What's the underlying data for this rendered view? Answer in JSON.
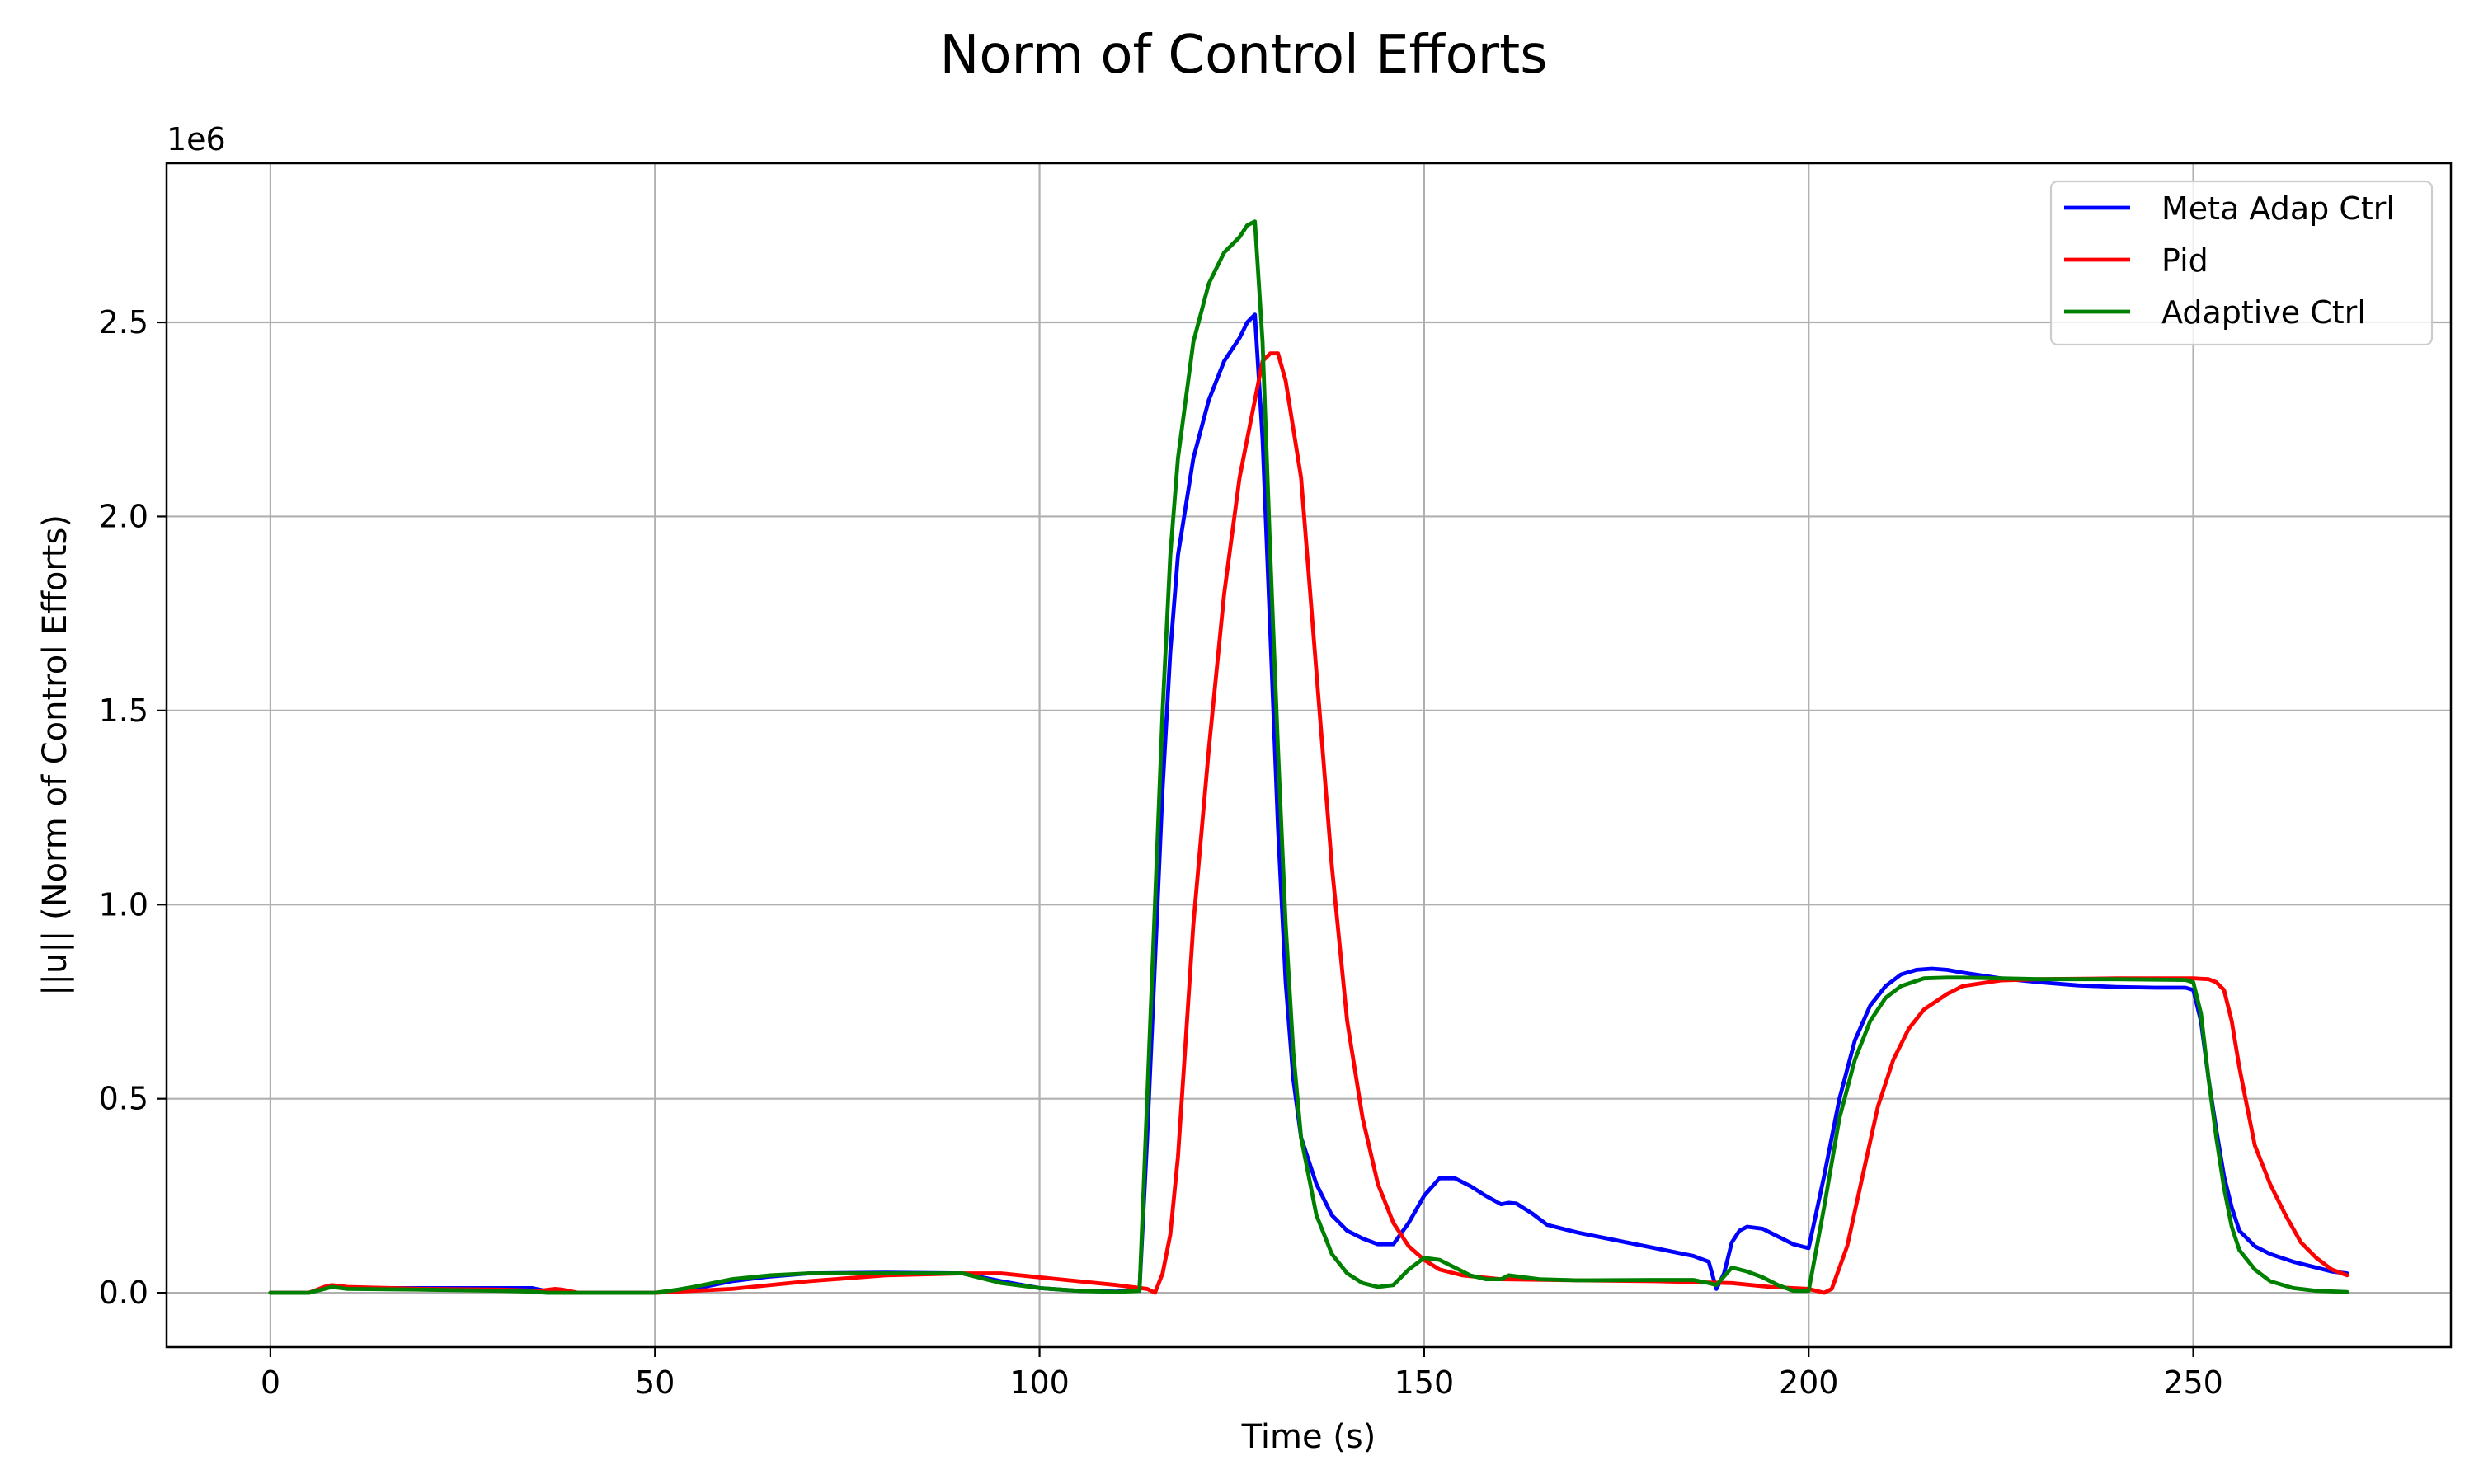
{
  "chart_data": {
    "type": "line",
    "title": "Norm of Control Efforts",
    "xlabel": "Time (s)",
    "ylabel": "||u|| (Norm of Control Efforts)",
    "y_offset_label": "1e6",
    "y_scale": 1000000,
    "xlim": [
      -13.5,
      283.5
    ],
    "ylim": [
      -0.14,
      2.91
    ],
    "x_ticks": [
      0,
      50,
      100,
      150,
      200,
      250
    ],
    "x_tick_labels": [
      "0",
      "50",
      "100",
      "150",
      "200",
      "250"
    ],
    "y_ticks": [
      0,
      0.5,
      1.0,
      1.5,
      2.0,
      2.5
    ],
    "y_tick_labels": [
      "0.0",
      "0.5",
      "1.0",
      "1.5",
      "2.0",
      "2.5"
    ],
    "grid": true,
    "legend_position": "top-right",
    "series": [
      {
        "name": "Meta Adap Ctrl",
        "color": "#0000ff",
        "points": [
          [
            0,
            0
          ],
          [
            5,
            0
          ],
          [
            7,
            0.012
          ],
          [
            8,
            0.015
          ],
          [
            10,
            0.012
          ],
          [
            20,
            0.012
          ],
          [
            30,
            0.012
          ],
          [
            34,
            0.012
          ],
          [
            36,
            0.004
          ],
          [
            40,
            0
          ],
          [
            50,
            0
          ],
          [
            55,
            0.01
          ],
          [
            60,
            0.03
          ],
          [
            65,
            0.042
          ],
          [
            70,
            0.05
          ],
          [
            80,
            0.052
          ],
          [
            90,
            0.05
          ],
          [
            95,
            0.03
          ],
          [
            100,
            0.012
          ],
          [
            105,
            0.005
          ],
          [
            110,
            0.003
          ],
          [
            113,
            0.01
          ],
          [
            114,
            0.4
          ],
          [
            115,
            0.85
          ],
          [
            116,
            1.3
          ],
          [
            117,
            1.65
          ],
          [
            118,
            1.9
          ],
          [
            120,
            2.15
          ],
          [
            122,
            2.3
          ],
          [
            124,
            2.4
          ],
          [
            126,
            2.46
          ],
          [
            127,
            2.5
          ],
          [
            128,
            2.52
          ],
          [
            129,
            2.2
          ],
          [
            130,
            1.7
          ],
          [
            131,
            1.2
          ],
          [
            132,
            0.8
          ],
          [
            133,
            0.55
          ],
          [
            134,
            0.4
          ],
          [
            136,
            0.28
          ],
          [
            138,
            0.2
          ],
          [
            140,
            0.16
          ],
          [
            142,
            0.14
          ],
          [
            144,
            0.125
          ],
          [
            146,
            0.125
          ],
          [
            148,
            0.18
          ],
          [
            150,
            0.25
          ],
          [
            152,
            0.295
          ],
          [
            154,
            0.295
          ],
          [
            156,
            0.275
          ],
          [
            158,
            0.25
          ],
          [
            160,
            0.228
          ],
          [
            161,
            0.232
          ],
          [
            162,
            0.23
          ],
          [
            164,
            0.205
          ],
          [
            166,
            0.175
          ],
          [
            170,
            0.155
          ],
          [
            175,
            0.135
          ],
          [
            180,
            0.115
          ],
          [
            185,
            0.095
          ],
          [
            187,
            0.08
          ],
          [
            188,
            0.01
          ],
          [
            189,
            0.05
          ],
          [
            190,
            0.13
          ],
          [
            191,
            0.16
          ],
          [
            192,
            0.17
          ],
          [
            194,
            0.165
          ],
          [
            196,
            0.145
          ],
          [
            198,
            0.125
          ],
          [
            200,
            0.115
          ],
          [
            202,
            0.3
          ],
          [
            204,
            0.5
          ],
          [
            206,
            0.65
          ],
          [
            208,
            0.74
          ],
          [
            210,
            0.79
          ],
          [
            212,
            0.82
          ],
          [
            214,
            0.832
          ],
          [
            216,
            0.835
          ],
          [
            218,
            0.832
          ],
          [
            220,
            0.825
          ],
          [
            225,
            0.81
          ],
          [
            230,
            0.8
          ],
          [
            235,
            0.792
          ],
          [
            240,
            0.788
          ],
          [
            245,
            0.786
          ],
          [
            249,
            0.786
          ],
          [
            250,
            0.78
          ],
          [
            251,
            0.7
          ],
          [
            252,
            0.55
          ],
          [
            253,
            0.42
          ],
          [
            254,
            0.3
          ],
          [
            255,
            0.22
          ],
          [
            256,
            0.16
          ],
          [
            258,
            0.12
          ],
          [
            260,
            0.1
          ],
          [
            263,
            0.08
          ],
          [
            266,
            0.065
          ],
          [
            268,
            0.055
          ],
          [
            270,
            0.05
          ]
        ]
      },
      {
        "name": "Pid",
        "color": "#ff0000",
        "points": [
          [
            0,
            0
          ],
          [
            5,
            0
          ],
          [
            7,
            0.015
          ],
          [
            8,
            0.02
          ],
          [
            10,
            0.015
          ],
          [
            20,
            0.01
          ],
          [
            30,
            0.008
          ],
          [
            35,
            0.005
          ],
          [
            37,
            0.01
          ],
          [
            38,
            0.008
          ],
          [
            40,
            0
          ],
          [
            50,
            0
          ],
          [
            60,
            0.01
          ],
          [
            70,
            0.03
          ],
          [
            80,
            0.045
          ],
          [
            90,
            0.05
          ],
          [
            95,
            0.05
          ],
          [
            100,
            0.04
          ],
          [
            105,
            0.03
          ],
          [
            110,
            0.02
          ],
          [
            114,
            0.01
          ],
          [
            115,
            0
          ],
          [
            116,
            0.05
          ],
          [
            117,
            0.15
          ],
          [
            118,
            0.35
          ],
          [
            119,
            0.65
          ],
          [
            120,
            0.95
          ],
          [
            122,
            1.4
          ],
          [
            124,
            1.8
          ],
          [
            126,
            2.1
          ],
          [
            128,
            2.3
          ],
          [
            129,
            2.4
          ],
          [
            130,
            2.42
          ],
          [
            131,
            2.42
          ],
          [
            132,
            2.35
          ],
          [
            134,
            2.1
          ],
          [
            136,
            1.6
          ],
          [
            138,
            1.1
          ],
          [
            140,
            0.7
          ],
          [
            142,
            0.45
          ],
          [
            144,
            0.28
          ],
          [
            146,
            0.18
          ],
          [
            148,
            0.12
          ],
          [
            150,
            0.085
          ],
          [
            152,
            0.06
          ],
          [
            155,
            0.045
          ],
          [
            160,
            0.035
          ],
          [
            170,
            0.032
          ],
          [
            180,
            0.03
          ],
          [
            190,
            0.025
          ],
          [
            195,
            0.015
          ],
          [
            200,
            0.01
          ],
          [
            202,
            0
          ],
          [
            203,
            0.01
          ],
          [
            205,
            0.12
          ],
          [
            207,
            0.3
          ],
          [
            209,
            0.48
          ],
          [
            211,
            0.6
          ],
          [
            213,
            0.68
          ],
          [
            215,
            0.73
          ],
          [
            218,
            0.77
          ],
          [
            220,
            0.79
          ],
          [
            225,
            0.805
          ],
          [
            230,
            0.808
          ],
          [
            240,
            0.81
          ],
          [
            250,
            0.81
          ],
          [
            252,
            0.808
          ],
          [
            253,
            0.8
          ],
          [
            254,
            0.78
          ],
          [
            255,
            0.7
          ],
          [
            256,
            0.58
          ],
          [
            257,
            0.48
          ],
          [
            258,
            0.38
          ],
          [
            260,
            0.28
          ],
          [
            262,
            0.2
          ],
          [
            264,
            0.13
          ],
          [
            266,
            0.09
          ],
          [
            268,
            0.06
          ],
          [
            270,
            0.045
          ]
        ]
      },
      {
        "name": "Adaptive Ctrl",
        "color": "#008000",
        "points": [
          [
            0,
            0
          ],
          [
            5,
            0
          ],
          [
            7,
            0.01
          ],
          [
            8,
            0.015
          ],
          [
            10,
            0.01
          ],
          [
            20,
            0.008
          ],
          [
            30,
            0.005
          ],
          [
            34,
            0.003
          ],
          [
            36,
            0
          ],
          [
            50,
            0
          ],
          [
            53,
            0.008
          ],
          [
            55,
            0.015
          ],
          [
            60,
            0.035
          ],
          [
            65,
            0.045
          ],
          [
            70,
            0.05
          ],
          [
            80,
            0.05
          ],
          [
            90,
            0.05
          ],
          [
            92,
            0.04
          ],
          [
            95,
            0.025
          ],
          [
            100,
            0.012
          ],
          [
            105,
            0.005
          ],
          [
            110,
            0.002
          ],
          [
            113,
            0.005
          ],
          [
            114,
            0.5
          ],
          [
            115,
            1.0
          ],
          [
            116,
            1.5
          ],
          [
            117,
            1.9
          ],
          [
            118,
            2.15
          ],
          [
            120,
            2.45
          ],
          [
            122,
            2.6
          ],
          [
            124,
            2.68
          ],
          [
            126,
            2.72
          ],
          [
            127,
            2.75
          ],
          [
            128,
            2.76
          ],
          [
            129,
            2.45
          ],
          [
            130,
            1.9
          ],
          [
            131,
            1.4
          ],
          [
            132,
            0.95
          ],
          [
            133,
            0.62
          ],
          [
            134,
            0.4
          ],
          [
            136,
            0.2
          ],
          [
            138,
            0.1
          ],
          [
            140,
            0.05
          ],
          [
            142,
            0.025
          ],
          [
            144,
            0.015
          ],
          [
            146,
            0.02
          ],
          [
            148,
            0.06
          ],
          [
            150,
            0.09
          ],
          [
            152,
            0.085
          ],
          [
            154,
            0.065
          ],
          [
            156,
            0.045
          ],
          [
            158,
            0.035
          ],
          [
            160,
            0.035
          ],
          [
            161,
            0.045
          ],
          [
            163,
            0.04
          ],
          [
            165,
            0.035
          ],
          [
            170,
            0.032
          ],
          [
            180,
            0.033
          ],
          [
            185,
            0.033
          ],
          [
            187,
            0.025
          ],
          [
            188,
            0.02
          ],
          [
            190,
            0.065
          ],
          [
            191,
            0.06
          ],
          [
            192,
            0.055
          ],
          [
            194,
            0.04
          ],
          [
            196,
            0.02
          ],
          [
            198,
            0.005
          ],
          [
            200,
            0.005
          ],
          [
            202,
            0.22
          ],
          [
            204,
            0.45
          ],
          [
            206,
            0.6
          ],
          [
            208,
            0.7
          ],
          [
            210,
            0.76
          ],
          [
            212,
            0.79
          ],
          [
            215,
            0.81
          ],
          [
            218,
            0.812
          ],
          [
            220,
            0.812
          ],
          [
            225,
            0.81
          ],
          [
            230,
            0.808
          ],
          [
            240,
            0.808
          ],
          [
            249,
            0.806
          ],
          [
            250,
            0.8
          ],
          [
            251,
            0.72
          ],
          [
            252,
            0.55
          ],
          [
            253,
            0.4
          ],
          [
            254,
            0.27
          ],
          [
            255,
            0.17
          ],
          [
            256,
            0.11
          ],
          [
            258,
            0.06
          ],
          [
            260,
            0.03
          ],
          [
            263,
            0.012
          ],
          [
            266,
            0.005
          ],
          [
            270,
            0.002
          ]
        ]
      }
    ]
  }
}
